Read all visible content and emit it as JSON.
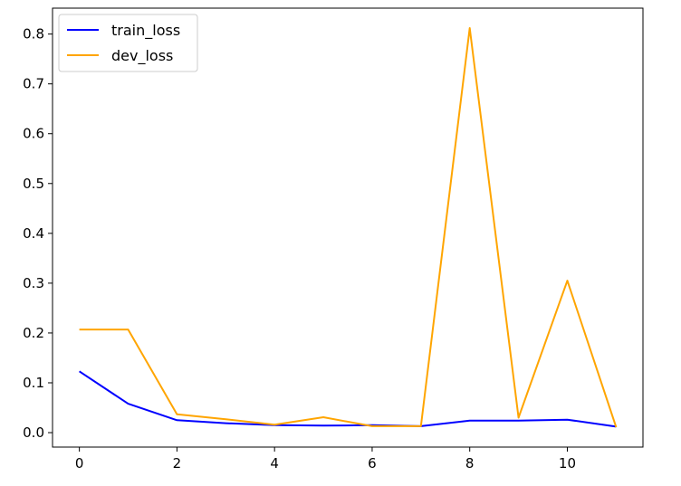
{
  "chart_data": {
    "type": "line",
    "x": [
      0,
      1,
      2,
      3,
      4,
      5,
      6,
      7,
      8,
      9,
      10,
      11
    ],
    "series": [
      {
        "name": "train_loss",
        "color": "#0000ff",
        "values": [
          0.123,
          0.058,
          0.025,
          0.019,
          0.015,
          0.014,
          0.015,
          0.013,
          0.024,
          0.024,
          0.026,
          0.012
        ]
      },
      {
        "name": "dev_loss",
        "color": "#ffa500",
        "values": [
          0.207,
          0.207,
          0.037,
          0.027,
          0.016,
          0.031,
          0.013,
          0.013,
          0.812,
          0.03,
          0.305,
          0.011
        ]
      }
    ],
    "xlim": [
      -0.55,
      11.55
    ],
    "ylim": [
      -0.029,
      0.852
    ],
    "xticks": [
      "0",
      "2",
      "4",
      "6",
      "8",
      "10"
    ],
    "yticks": [
      "0.0",
      "0.1",
      "0.2",
      "0.3",
      "0.4",
      "0.5",
      "0.6",
      "0.7",
      "0.8"
    ],
    "legend": "top-left",
    "grid": false
  }
}
